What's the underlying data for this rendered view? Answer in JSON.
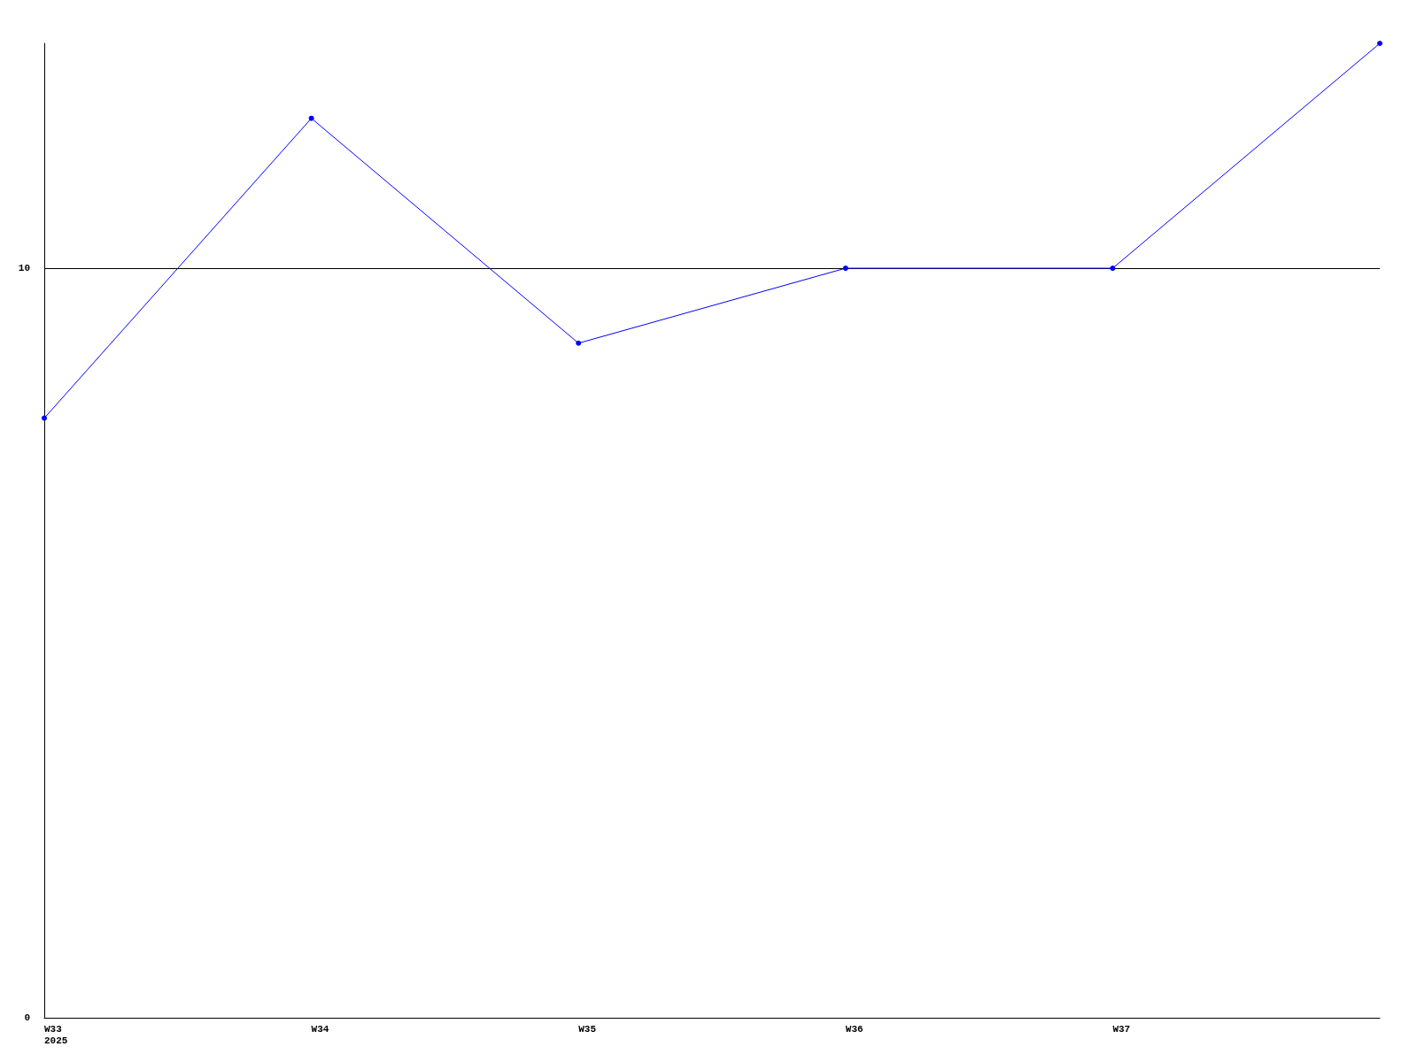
{
  "chart_data": {
    "type": "line",
    "categories": [
      "W33\n2025",
      "W34",
      "W35",
      "W36",
      "W37",
      null
    ],
    "series": [
      {
        "color": "#0000ff",
        "values": [
          8,
          12,
          9,
          10,
          10,
          13
        ]
      }
    ],
    "ylim": [
      0,
      13
    ],
    "yticks": [
      0,
      10
    ],
    "grid": "y",
    "marker": "circle",
    "line_style": "solid"
  }
}
